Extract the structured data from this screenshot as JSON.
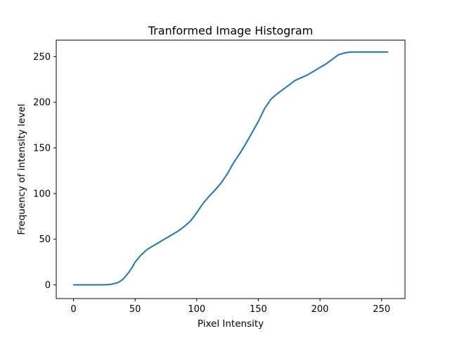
{
  "chart_data": {
    "type": "line",
    "title": "Tranformed Image Histogram",
    "xlabel": "Pixel Intensity",
    "ylabel": "Frequency of intensity level",
    "xlim": [
      -14,
      269
    ],
    "ylim": [
      -15,
      268
    ],
    "xticks": [
      0,
      50,
      100,
      150,
      200,
      250
    ],
    "yticks": [
      0,
      50,
      100,
      150,
      200,
      250
    ],
    "grid": false,
    "line_color": "#1f77b4",
    "series": [
      {
        "x": [
          0,
          10,
          20,
          25,
          30,
          35,
          38,
          40,
          42,
          45,
          48,
          50,
          55,
          60,
          65,
          70,
          75,
          80,
          85,
          90,
          95,
          100,
          105,
          110,
          115,
          120,
          125,
          130,
          135,
          140,
          145,
          150,
          155,
          160,
          165,
          170,
          175,
          180,
          185,
          190,
          195,
          200,
          205,
          210,
          212,
          215,
          220,
          225,
          230,
          240,
          250,
          255
        ],
        "values": [
          0,
          0,
          0,
          0,
          0.5,
          2,
          4,
          6,
          9,
          14,
          20,
          25,
          33,
          39,
          43,
          47,
          51,
          55,
          59,
          64,
          70,
          79,
          89,
          97,
          104,
          112,
          122,
          134,
          144,
          155,
          167,
          179,
          193,
          203,
          209,
          214,
          219,
          224,
          227,
          230,
          234,
          238,
          242,
          247,
          249,
          252,
          254,
          255,
          255,
          255,
          255,
          255
        ]
      }
    ]
  }
}
